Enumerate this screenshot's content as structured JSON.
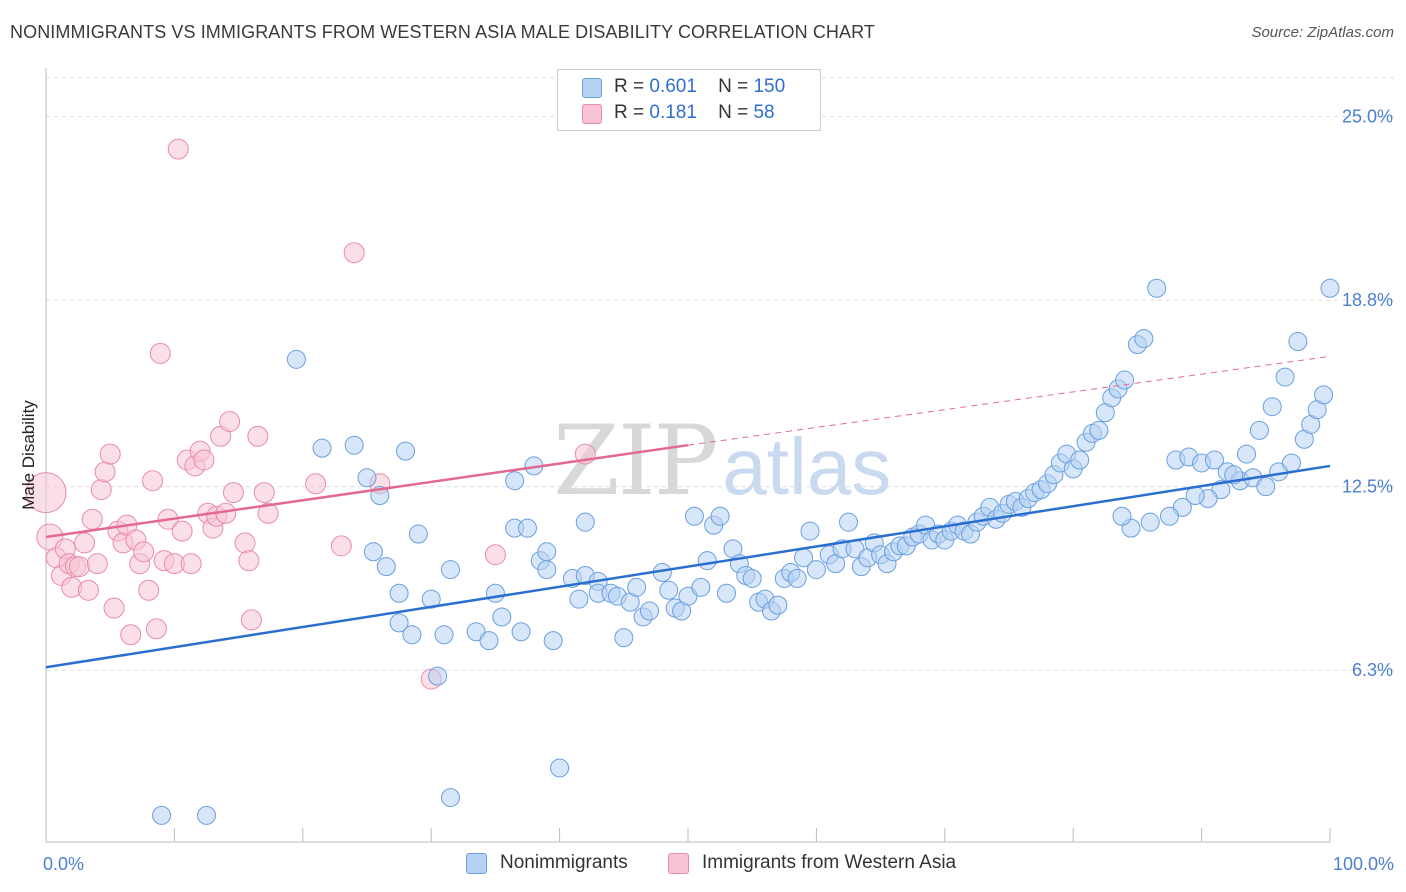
{
  "title": "NONIMMIGRANTS VS IMMIGRANTS FROM WESTERN ASIA MALE DISABILITY CORRELATION CHART",
  "source": "Source: ZipAtlas.com",
  "watermark": {
    "zip": "ZIP",
    "atlas": "atlas"
  },
  "legend": {
    "rows": [
      {
        "r_label": "R =",
        "r_value": "0.601",
        "n_label": "N =",
        "n_value": "150"
      },
      {
        "r_label": "R =",
        "r_value": " 0.181",
        "n_label": "N =",
        "n_value": " 58"
      }
    ]
  },
  "bottom_legend": [
    "Nonimmigrants",
    "Immigrants from Western Asia"
  ],
  "colors": {
    "blue": "#6a9fe0",
    "blue_fill": "#b7d1f3",
    "blue_line": "#2a6fd0",
    "pink": "#e88ca8",
    "pink_fill": "#f7c4d3",
    "pink_line": "#e26a92",
    "grid": "#dddddd",
    "axis_label": "#4a7fd0"
  },
  "chart_data": {
    "type": "scatter",
    "title": "NONIMMIGRANTS VS IMMIGRANTS FROM WESTERN ASIA MALE DISABILITY CORRELATION CHART",
    "xlabel": "",
    "ylabel": "Male Disability",
    "xlim": [
      0,
      100
    ],
    "ylim": [
      0.5,
      26.3
    ],
    "x_tick_labels": [
      "0.0%",
      "100.0%"
    ],
    "y_ticks": [
      6.3,
      12.5,
      18.8,
      25.0
    ],
    "y_tick_labels": [
      "6.3%",
      "12.5%",
      "18.8%",
      "25.0%"
    ],
    "grid": true,
    "legend_placement": "top-center",
    "series": [
      {
        "name": "Nonimmigrants",
        "trend": {
          "x": [
            0,
            100
          ],
          "y": [
            6.4,
            13.2
          ],
          "dashed_to": null
        },
        "points": [
          [
            9.0,
            1.4
          ],
          [
            12.5,
            1.4
          ],
          [
            19.5,
            16.8
          ],
          [
            21.5,
            13.8
          ],
          [
            24.0,
            13.9
          ],
          [
            25.0,
            12.8
          ],
          [
            25.5,
            10.3
          ],
          [
            26.0,
            12.2
          ],
          [
            26.5,
            9.8
          ],
          [
            27.5,
            8.9
          ],
          [
            27.5,
            7.9
          ],
          [
            28.0,
            13.7
          ],
          [
            28.5,
            7.5
          ],
          [
            29.0,
            10.9
          ],
          [
            30.0,
            8.7
          ],
          [
            30.5,
            6.1
          ],
          [
            31.0,
            7.5
          ],
          [
            31.5,
            9.7
          ],
          [
            31.5,
            2.0
          ],
          [
            33.5,
            7.6
          ],
          [
            34.5,
            7.3
          ],
          [
            35.0,
            8.9
          ],
          [
            35.5,
            8.1
          ],
          [
            36.5,
            12.7
          ],
          [
            36.5,
            11.1
          ],
          [
            37.0,
            7.6
          ],
          [
            37.5,
            11.1
          ],
          [
            38.0,
            13.2
          ],
          [
            38.5,
            10.0
          ],
          [
            39.0,
            9.7
          ],
          [
            39.0,
            10.3
          ],
          [
            39.5,
            7.3
          ],
          [
            40.0,
            3.0
          ],
          [
            41.0,
            9.4
          ],
          [
            41.5,
            8.7
          ],
          [
            42.0,
            9.5
          ],
          [
            42.0,
            11.3
          ],
          [
            43.0,
            9.3
          ],
          [
            43.0,
            8.9
          ],
          [
            44.0,
            8.9
          ],
          [
            44.5,
            8.8
          ],
          [
            45.0,
            7.4
          ],
          [
            45.5,
            8.6
          ],
          [
            46.0,
            9.1
          ],
          [
            46.5,
            8.1
          ],
          [
            47.0,
            8.3
          ],
          [
            48.0,
            9.6
          ],
          [
            48.5,
            9.0
          ],
          [
            49.0,
            8.4
          ],
          [
            49.5,
            8.3
          ],
          [
            50.0,
            8.8
          ],
          [
            50.5,
            11.5
          ],
          [
            51.0,
            9.1
          ],
          [
            51.5,
            10.0
          ],
          [
            52.0,
            11.2
          ],
          [
            52.5,
            11.5
          ],
          [
            53.0,
            8.9
          ],
          [
            53.5,
            10.4
          ],
          [
            54.0,
            9.9
          ],
          [
            54.5,
            9.5
          ],
          [
            55.0,
            9.4
          ],
          [
            55.5,
            8.6
          ],
          [
            56.0,
            8.7
          ],
          [
            56.5,
            8.3
          ],
          [
            57.0,
            8.5
          ],
          [
            57.5,
            9.4
          ],
          [
            58.0,
            9.6
          ],
          [
            58.5,
            9.4
          ],
          [
            59.0,
            10.1
          ],
          [
            59.5,
            11.0
          ],
          [
            60.0,
            9.7
          ],
          [
            61.0,
            10.2
          ],
          [
            61.5,
            9.9
          ],
          [
            62.0,
            10.4
          ],
          [
            62.5,
            11.3
          ],
          [
            63.0,
            10.4
          ],
          [
            63.5,
            9.8
          ],
          [
            64.0,
            10.1
          ],
          [
            64.5,
            10.6
          ],
          [
            65.0,
            10.2
          ],
          [
            65.5,
            9.9
          ],
          [
            66.0,
            10.3
          ],
          [
            66.5,
            10.5
          ],
          [
            67.0,
            10.5
          ],
          [
            67.5,
            10.8
          ],
          [
            68.0,
            10.9
          ],
          [
            68.5,
            11.2
          ],
          [
            69.0,
            10.7
          ],
          [
            69.5,
            10.9
          ],
          [
            70.0,
            10.7
          ],
          [
            70.5,
            11.0
          ],
          [
            71.0,
            11.2
          ],
          [
            71.5,
            11.0
          ],
          [
            72.0,
            10.9
          ],
          [
            72.5,
            11.3
          ],
          [
            73.0,
            11.5
          ],
          [
            73.5,
            11.8
          ],
          [
            74.0,
            11.4
          ],
          [
            74.5,
            11.6
          ],
          [
            75.0,
            11.9
          ],
          [
            75.5,
            12.0
          ],
          [
            76.0,
            11.8
          ],
          [
            76.5,
            12.1
          ],
          [
            77.0,
            12.3
          ],
          [
            77.5,
            12.4
          ],
          [
            78.0,
            12.6
          ],
          [
            78.5,
            12.9
          ],
          [
            79.0,
            13.3
          ],
          [
            79.5,
            13.6
          ],
          [
            80.0,
            13.1
          ],
          [
            80.5,
            13.4
          ],
          [
            81.0,
            14.0
          ],
          [
            81.5,
            14.3
          ],
          [
            82.0,
            14.4
          ],
          [
            82.5,
            15.0
          ],
          [
            83.0,
            15.5
          ],
          [
            83.5,
            15.8
          ],
          [
            84.0,
            16.1
          ],
          [
            85.0,
            17.3
          ],
          [
            85.5,
            17.5
          ],
          [
            86.5,
            19.2
          ],
          [
            88.0,
            13.4
          ],
          [
            89.0,
            13.5
          ],
          [
            90.0,
            13.3
          ],
          [
            91.0,
            13.4
          ],
          [
            92.0,
            13.0
          ],
          [
            93.0,
            12.7
          ],
          [
            94.0,
            12.8
          ],
          [
            95.0,
            12.5
          ],
          [
            96.0,
            13.0
          ],
          [
            97.0,
            13.3
          ],
          [
            98.0,
            14.1
          ],
          [
            98.5,
            14.6
          ],
          [
            99.0,
            15.1
          ],
          [
            99.5,
            15.6
          ],
          [
            100.0,
            19.2
          ],
          [
            97.5,
            17.4
          ],
          [
            96.5,
            16.2
          ],
          [
            95.5,
            15.2
          ],
          [
            94.5,
            14.4
          ],
          [
            93.5,
            13.6
          ],
          [
            92.5,
            12.9
          ],
          [
            91.5,
            12.4
          ],
          [
            90.5,
            12.1
          ],
          [
            89.5,
            12.2
          ],
          [
            88.5,
            11.8
          ],
          [
            87.5,
            11.5
          ],
          [
            86.0,
            11.3
          ],
          [
            84.5,
            11.1
          ],
          [
            83.8,
            11.5
          ]
        ]
      },
      {
        "name": "Immigrants from Western Asia",
        "trend": {
          "x": [
            0,
            50
          ],
          "y": [
            10.8,
            13.9
          ],
          "dashed_to": [
            100,
            16.9
          ]
        },
        "points": [
          [
            0.0,
            12.3
          ],
          [
            0.3,
            10.8
          ],
          [
            0.8,
            10.1
          ],
          [
            1.2,
            9.5
          ],
          [
            1.5,
            10.4
          ],
          [
            1.8,
            9.9
          ],
          [
            2.0,
            9.1
          ],
          [
            2.3,
            9.8
          ],
          [
            2.6,
            9.8
          ],
          [
            3.0,
            10.6
          ],
          [
            3.3,
            9.0
          ],
          [
            3.6,
            11.4
          ],
          [
            4.0,
            9.9
          ],
          [
            4.3,
            12.4
          ],
          [
            4.6,
            13.0
          ],
          [
            5.0,
            13.6
          ],
          [
            5.3,
            8.4
          ],
          [
            5.6,
            11.0
          ],
          [
            6.0,
            10.6
          ],
          [
            6.3,
            11.2
          ],
          [
            6.6,
            7.5
          ],
          [
            7.0,
            10.7
          ],
          [
            7.3,
            9.9
          ],
          [
            7.6,
            10.3
          ],
          [
            8.0,
            9.0
          ],
          [
            8.3,
            12.7
          ],
          [
            8.6,
            7.7
          ],
          [
            8.9,
            17.0
          ],
          [
            9.2,
            10.0
          ],
          [
            9.5,
            11.4
          ],
          [
            10.0,
            9.9
          ],
          [
            10.3,
            23.9
          ],
          [
            10.6,
            11.0
          ],
          [
            11.0,
            13.4
          ],
          [
            11.3,
            9.9
          ],
          [
            11.6,
            13.2
          ],
          [
            12.0,
            13.7
          ],
          [
            12.3,
            13.4
          ],
          [
            12.6,
            11.6
          ],
          [
            13.0,
            11.1
          ],
          [
            13.3,
            11.5
          ],
          [
            13.6,
            14.2
          ],
          [
            14.0,
            11.6
          ],
          [
            14.3,
            14.7
          ],
          [
            14.6,
            12.3
          ],
          [
            15.5,
            10.6
          ],
          [
            15.8,
            10.0
          ],
          [
            16.0,
            8.0
          ],
          [
            16.5,
            14.2
          ],
          [
            17.0,
            12.3
          ],
          [
            17.3,
            11.6
          ],
          [
            21.0,
            12.6
          ],
          [
            23.0,
            10.5
          ],
          [
            24.0,
            20.4
          ],
          [
            26.0,
            12.6
          ],
          [
            30.0,
            6.0
          ],
          [
            35.0,
            10.2
          ],
          [
            42.0,
            13.6
          ]
        ]
      }
    ]
  }
}
